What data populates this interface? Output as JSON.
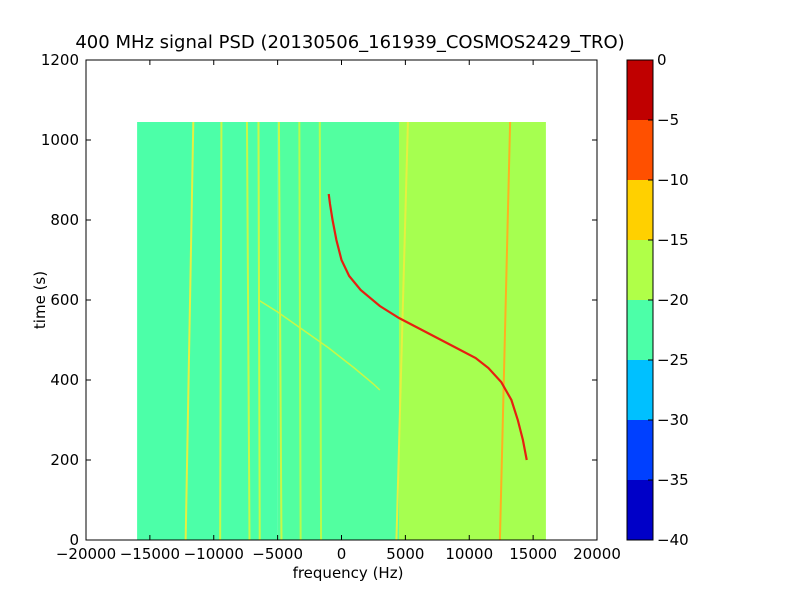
{
  "chart_data": {
    "type": "heatmap",
    "title": "400 MHz signal PSD (20130506_161939_COSMOS2429_TRO)",
    "xlabel": "frequency (Hz)",
    "ylabel": "time (s)",
    "xlim": [
      -20000,
      20000
    ],
    "ylim": [
      0,
      1200
    ],
    "xticks": [
      "−20000",
      "−15000",
      "−10000",
      "−5000",
      "0",
      "5000",
      "10000",
      "15000",
      "20000"
    ],
    "yticks": [
      "0",
      "200",
      "400",
      "600",
      "800",
      "1000",
      "1200"
    ],
    "data_extent": {
      "x": [
        -16000,
        16000
      ],
      "y": [
        0,
        1045
      ]
    },
    "regions": [
      {
        "x": [
          -16000,
          -5000
        ],
        "level": -22,
        "color": "#4cffa8"
      },
      {
        "x": [
          -5000,
          4500
        ],
        "level": -21,
        "color": "#52ffa0"
      },
      {
        "x": [
          4500,
          16000
        ],
        "level": -17,
        "color": "#a6ff50"
      }
    ],
    "vertical_lines": [
      {
        "x": [
          -12200,
          -11600
        ],
        "level": -14,
        "color": "#e6f040"
      },
      {
        "x": [
          -9500,
          -9400
        ],
        "level": -15,
        "color": "#c8f846"
      },
      {
        "x": [
          -7200,
          -7400
        ],
        "level": -15,
        "color": "#c8f846"
      },
      {
        "x": [
          -6400,
          -6500
        ],
        "level": -15,
        "color": "#c8f846"
      },
      {
        "x": [
          -4700,
          -4900
        ],
        "level": -15,
        "color": "#c8f846"
      },
      {
        "x": [
          -3200,
          -3300
        ],
        "level": -16,
        "color": "#b8fb4a"
      },
      {
        "x": [
          -1600,
          -1700
        ],
        "level": -16,
        "color": "#b8fb4a"
      },
      {
        "x": [
          4300,
          5200
        ],
        "level": -14,
        "color": "#e6f040"
      },
      {
        "x": [
          12400,
          13200
        ],
        "level": -12,
        "color": "#ffb020"
      }
    ],
    "chirp_trace": {
      "level": -2,
      "color": "#e62010",
      "points": [
        [
          -1000,
          865
        ],
        [
          -900,
          840
        ],
        [
          -700,
          800
        ],
        [
          -400,
          750
        ],
        [
          0,
          700
        ],
        [
          600,
          660
        ],
        [
          1500,
          625
        ],
        [
          3000,
          585
        ],
        [
          4500,
          555
        ],
        [
          6000,
          530
        ],
        [
          7500,
          505
        ],
        [
          9000,
          480
        ],
        [
          10500,
          455
        ],
        [
          11500,
          430
        ],
        [
          12500,
          395
        ],
        [
          13300,
          350
        ],
        [
          13800,
          300
        ],
        [
          14200,
          250
        ],
        [
          14500,
          200
        ]
      ]
    },
    "faint_trace": {
      "level": -15,
      "color": "#c8f846",
      "points": [
        [
          -6500,
          600
        ],
        [
          -5000,
          570
        ],
        [
          -3000,
          525
        ],
        [
          -1000,
          480
        ],
        [
          1000,
          430
        ],
        [
          2500,
          390
        ],
        [
          3000,
          375
        ]
      ]
    },
    "colorbar": {
      "ticks": [
        "0",
        "−5",
        "−10",
        "−15",
        "−20",
        "−25",
        "−30",
        "−35",
        "−40"
      ],
      "range": [
        -40,
        0
      ],
      "bands": [
        {
          "range": [
            -40,
            -35
          ],
          "color": "#0000c8"
        },
        {
          "range": [
            -35,
            -30
          ],
          "color": "#0040ff"
        },
        {
          "range": [
            -30,
            -25
          ],
          "color": "#00c0ff"
        },
        {
          "range": [
            -25,
            -20
          ],
          "color": "#4cffa8"
        },
        {
          "range": [
            -20,
            -15
          ],
          "color": "#b0ff48"
        },
        {
          "range": [
            -15,
            -10
          ],
          "color": "#ffd000"
        },
        {
          "range": [
            -10,
            -5
          ],
          "color": "#ff5000"
        },
        {
          "range": [
            -5,
            0
          ],
          "color": "#c00000"
        }
      ]
    }
  }
}
